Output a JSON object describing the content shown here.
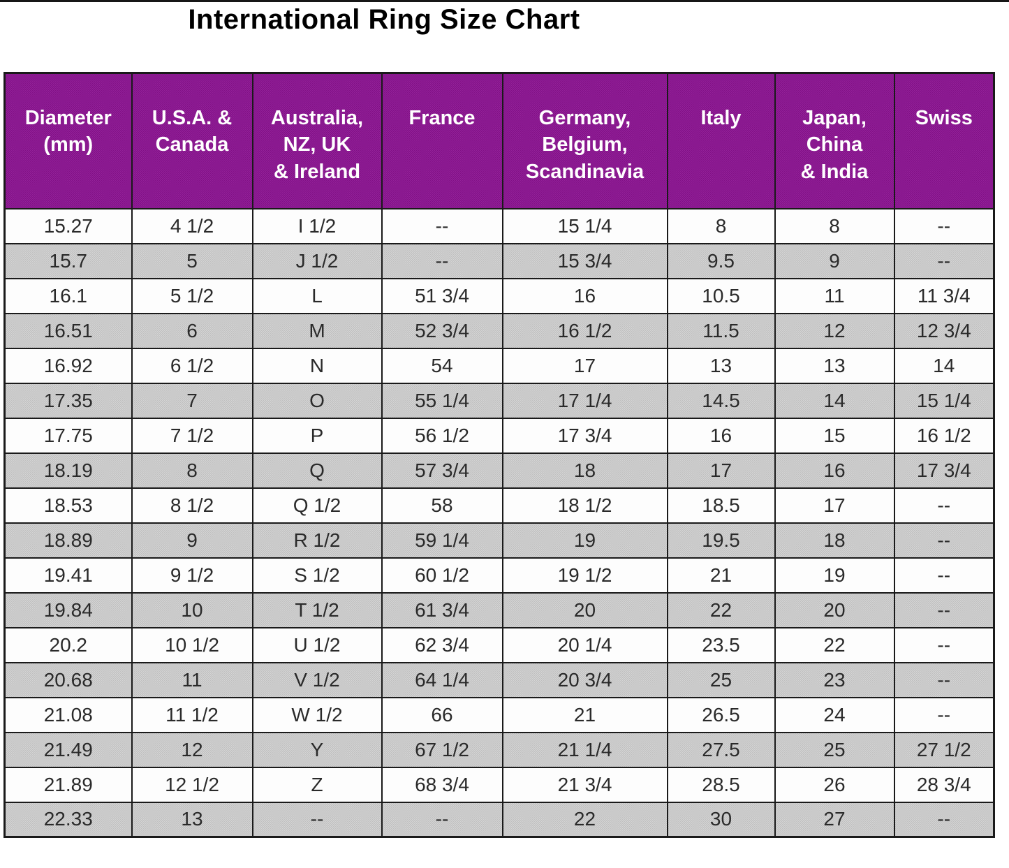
{
  "colors": {
    "header_bg": "#8C1191",
    "header_text": "#FFFFFF",
    "row_bg": "#FDFDFD",
    "row_alt_bg": "#C9C9C9",
    "border": "#1A1A1A",
    "title_color": "#000000"
  },
  "chart_data": {
    "type": "table",
    "title": "International Ring Size Chart",
    "columns": [
      "Diameter\n(mm)",
      "U.S.A. &\nCanada",
      "Australia,\nNZ, UK\n& Ireland",
      "France",
      "Germany,\nBelgium,\nScandinavia",
      "Italy",
      "Japan,\nChina\n& India",
      "Swiss"
    ],
    "rows": [
      [
        "15.27",
        "4 1/2",
        "I 1/2",
        "--",
        "15 1/4",
        "8",
        "8",
        "--"
      ],
      [
        "15.7",
        "5",
        "J 1/2",
        "--",
        "15 3/4",
        "9.5",
        "9",
        "--"
      ],
      [
        "16.1",
        "5 1/2",
        "L",
        "51 3/4",
        "16",
        "10.5",
        "11",
        "11 3/4"
      ],
      [
        "16.51",
        "6",
        "M",
        "52 3/4",
        "16 1/2",
        "11.5",
        "12",
        "12 3/4"
      ],
      [
        "16.92",
        "6 1/2",
        "N",
        "54",
        "17",
        "13",
        "13",
        "14"
      ],
      [
        "17.35",
        "7",
        "O",
        "55 1/4",
        "17 1/4",
        "14.5",
        "14",
        "15 1/4"
      ],
      [
        "17.75",
        "7 1/2",
        "P",
        "56 1/2",
        "17 3/4",
        "16",
        "15",
        "16 1/2"
      ],
      [
        "18.19",
        "8",
        "Q",
        "57 3/4",
        "18",
        "17",
        "16",
        "17 3/4"
      ],
      [
        "18.53",
        "8 1/2",
        "Q 1/2",
        "58",
        "18 1/2",
        "18.5",
        "17",
        "--"
      ],
      [
        "18.89",
        "9",
        "R 1/2",
        "59 1/4",
        "19",
        "19.5",
        "18",
        "--"
      ],
      [
        "19.41",
        "9 1/2",
        "S 1/2",
        "60 1/2",
        "19 1/2",
        "21",
        "19",
        "--"
      ],
      [
        "19.84",
        "10",
        "T 1/2",
        "61 3/4",
        "20",
        "22",
        "20",
        "--"
      ],
      [
        "20.2",
        "10 1/2",
        "U 1/2",
        "62 3/4",
        "20 1/4",
        "23.5",
        "22",
        "--"
      ],
      [
        "20.68",
        "11",
        "V 1/2",
        "64 1/4",
        "20 3/4",
        "25",
        "23",
        "--"
      ],
      [
        "21.08",
        "11 1/2",
        "W 1/2",
        "66",
        "21",
        "26.5",
        "24",
        "--"
      ],
      [
        "21.49",
        "12",
        "Y",
        "67 1/2",
        "21 1/4",
        "27.5",
        "25",
        "27 1/2"
      ],
      [
        "21.89",
        "12 1/2",
        "Z",
        "68 3/4",
        "21 3/4",
        "28.5",
        "26",
        "28 3/4"
      ],
      [
        "22.33",
        "13",
        "--",
        "--",
        "22",
        "30",
        "27",
        "--"
      ]
    ]
  }
}
